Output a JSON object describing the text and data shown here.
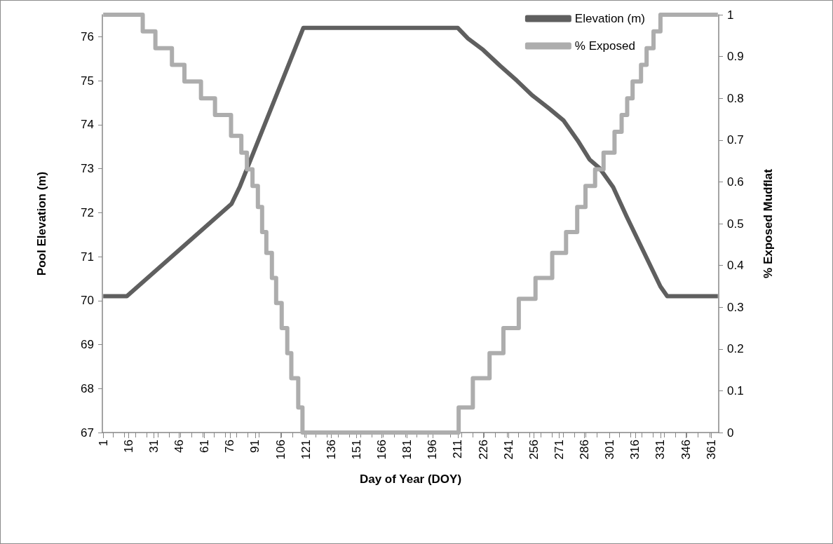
{
  "chart_data": {
    "type": "line",
    "xlabel": "Day of Year (DOY)",
    "ylabel": "Pool Elevation (m)",
    "y2label": "% Exposed Mudflat",
    "xlim": [
      0.5,
      365.5
    ],
    "xticks": [
      1,
      16,
      31,
      46,
      61,
      76,
      91,
      106,
      121,
      136,
      151,
      166,
      181,
      196,
      211,
      226,
      241,
      256,
      271,
      286,
      301,
      316,
      331,
      346,
      361
    ],
    "ylim": [
      67,
      76.5
    ],
    "yticks": [
      67,
      68,
      69,
      70,
      71,
      72,
      73,
      74,
      75,
      76
    ],
    "y2lim": [
      0,
      1
    ],
    "y2ticks": [
      0,
      0.1,
      0.2,
      0.3,
      0.4,
      0.5,
      0.6,
      0.7,
      0.8,
      0.9,
      1
    ],
    "legend": "top right",
    "grid": false,
    "marker": "none",
    "line_style": "solid",
    "series": [
      {
        "name": "Elevation (m)",
        "color": "#5f5f5f",
        "x": [
          1,
          15,
          77,
          82,
          119.5,
          211,
          217,
          226,
          236,
          246,
          255,
          265,
          273.5,
          282,
          289,
          295,
          303,
          311,
          331,
          335,
          365
        ],
        "values": [
          70.1,
          70.1,
          72.2,
          72.6,
          76.2,
          76.2,
          75.96,
          75.7,
          75.34,
          75.0,
          74.67,
          74.37,
          74.1,
          73.64,
          73.21,
          73.01,
          72.58,
          71.91,
          70.32,
          70.1,
          70.1
        ]
      },
      {
        "name": "% Exposed",
        "type": "step",
        "axis": "y2",
        "color": "#adadad",
        "x": [
          1,
          24.4,
          31.9,
          41.7,
          49.1,
          58.9,
          67.2,
          76.7,
          82.8,
          86.1,
          89.4,
          92.6,
          95.1,
          97.6,
          100.9,
          103.4,
          106.7,
          110,
          112.4,
          116.5,
          119,
          211.5,
          219.9,
          229.8,
          238,
          247.1,
          257,
          266.9,
          275.1,
          281.7,
          286.6,
          292.3,
          297.3,
          303.8,
          308,
          311.3,
          314.5,
          319.5,
          322.8,
          326.9,
          331,
          365
        ],
        "values": [
          1,
          0.96,
          0.92,
          0.88,
          0.84,
          0.8,
          0.76,
          0.71,
          0.67,
          0.63,
          0.59,
          0.54,
          0.48,
          0.43,
          0.37,
          0.31,
          0.25,
          0.19,
          0.13,
          0.06,
          0,
          0.06,
          0.13,
          0.19,
          0.25,
          0.32,
          0.37,
          0.43,
          0.48,
          0.54,
          0.59,
          0.63,
          0.67,
          0.72,
          0.76,
          0.8,
          0.84,
          0.88,
          0.92,
          0.96,
          1,
          1
        ]
      }
    ]
  }
}
